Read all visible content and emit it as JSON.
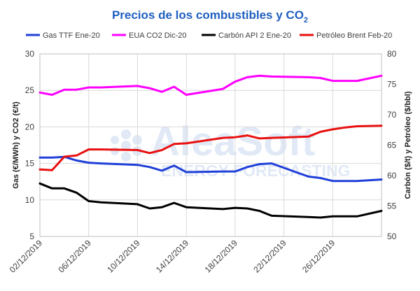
{
  "chart_data": {
    "type": "line",
    "title": "Precios de los combustibles y CO",
    "title_subscript": "2",
    "left_axis": {
      "label": "Gas (€/MWh) y CO2 (€/t)",
      "range": [
        5,
        30
      ],
      "ticks": [
        "5",
        "10",
        "15",
        "20",
        "25",
        "30"
      ]
    },
    "right_axis": {
      "label": "Carbón ($/t) y Petróleo ($/bbl)",
      "range": [
        50,
        80
      ],
      "ticks": [
        "50",
        "55",
        "60",
        "65",
        "70",
        "75",
        "80"
      ]
    },
    "x_axis": {
      "range_days": [
        0,
        28
      ],
      "tick_days": [
        0,
        4,
        8,
        12,
        16,
        20,
        24
      ],
      "ticks": [
        "02/12/2019",
        "06/12/2019",
        "10/12/2019",
        "14/12/2019",
        "18/12/2019",
        "22/12/2019",
        "26/12/2019"
      ]
    },
    "grid": true,
    "legend_position": "top",
    "series": [
      {
        "name": "Gas TTF Ene-20",
        "axis": "left",
        "color": "#1f3fd8",
        "days": [
          0,
          1,
          2,
          3,
          4,
          5,
          8,
          9,
          10,
          11,
          12,
          15,
          16,
          17,
          18,
          19,
          22,
          23,
          24,
          25,
          26,
          28
        ],
        "values": [
          15.8,
          15.8,
          15.9,
          15.4,
          15.1,
          15.0,
          14.8,
          14.5,
          14.0,
          14.7,
          13.8,
          13.9,
          13.9,
          14.5,
          14.9,
          15.0,
          13.2,
          13.0,
          12.6,
          12.6,
          12.6,
          12.8
        ]
      },
      {
        "name": "EUA CO2 Dic-20",
        "axis": "left",
        "color": "#ff00ff",
        "days": [
          0,
          1,
          2,
          3,
          4,
          5,
          8,
          9,
          10,
          11,
          12,
          15,
          16,
          17,
          18,
          19,
          22,
          23,
          24,
          25,
          26,
          28
        ],
        "values": [
          24.7,
          24.4,
          25.1,
          25.1,
          25.4,
          25.4,
          25.6,
          25.3,
          24.8,
          25.5,
          24.4,
          25.2,
          26.2,
          26.8,
          27.0,
          26.9,
          26.8,
          26.7,
          26.3,
          26.3,
          26.3,
          27.0
        ]
      },
      {
        "name": "Carbón API 2 Ene-20",
        "axis": "right",
        "color": "#000000",
        "days": [
          0,
          1,
          2,
          3,
          4,
          5,
          8,
          9,
          10,
          11,
          12,
          15,
          16,
          17,
          18,
          19,
          22,
          23,
          24,
          25,
          26,
          28
        ],
        "values": [
          58.7,
          57.9,
          57.9,
          57.2,
          55.8,
          55.6,
          55.3,
          54.6,
          54.8,
          55.5,
          54.8,
          54.5,
          54.7,
          54.6,
          54.2,
          53.4,
          53.2,
          53.1,
          53.3,
          53.3,
          53.3,
          54.2
        ]
      },
      {
        "name": "Petróleo Brent Feb-20",
        "axis": "right",
        "color": "#e81010",
        "days": [
          0,
          1,
          2,
          3,
          4,
          5,
          8,
          9,
          10,
          11,
          12,
          15,
          16,
          17,
          18,
          19,
          22,
          23,
          24,
          25,
          26,
          28
        ],
        "values": [
          61.0,
          60.9,
          63.1,
          63.3,
          64.3,
          64.3,
          64.2,
          63.7,
          64.2,
          65.2,
          65.3,
          66.2,
          66.3,
          66.6,
          66.1,
          66.2,
          66.4,
          67.2,
          67.6,
          67.9,
          68.1,
          68.2
        ]
      }
    ]
  },
  "watermark": {
    "brand": "AleaSoft",
    "tagline": "ENERGY FORECASTING"
  }
}
